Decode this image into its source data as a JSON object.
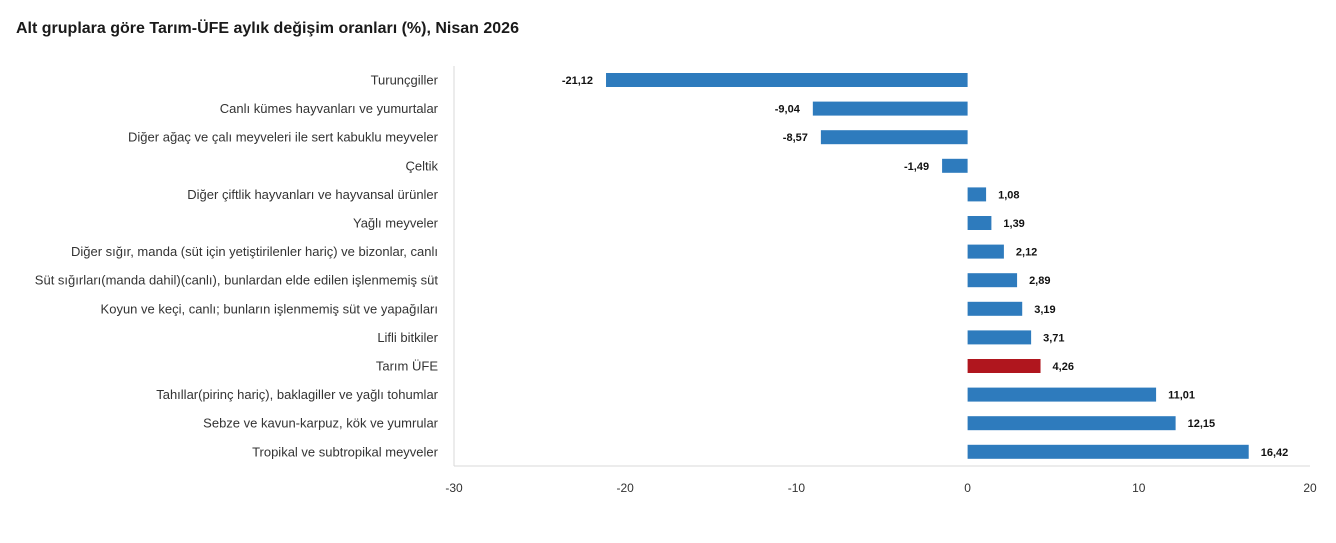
{
  "chart_data": {
    "type": "bar",
    "orientation": "horizontal",
    "title": "Alt gruplara göre Tarım-ÜFE aylık değişim oranları (%), Nisan 2026",
    "xlabel": "",
    "ylabel": "",
    "xlim": [
      -30,
      20
    ],
    "xticks": [
      "-30",
      "-20",
      "-10",
      "0",
      "10",
      "20"
    ],
    "grid": false,
    "legend": "none",
    "colors": {
      "default": "#2e7bbd",
      "highlight": "#b0161e"
    },
    "categories": [
      "Turunçgiller",
      "Canlı kümes hayvanları ve yumurtalar",
      "Diğer ağaç ve çalı meyveleri ile sert kabuklu meyveler",
      "Çeltik",
      "Diğer çiftlik hayvanları ve hayvansal ürünler",
      "Yağlı meyveler",
      "Diğer sığır, manda (süt için yetiştirilenler hariç) ve bizonlar, canlı",
      "Süt sığırları(manda dahil)(canlı), bunlardan elde edilen işlenmemiş süt",
      "Koyun ve keçi, canlı; bunların işlenmemiş süt ve yapağıları",
      "Lifli bitkiler",
      "Tarım ÜFE",
      "Tahıllar(pirinç hariç), baklagiller ve yağlı tohumlar",
      "Sebze ve kavun-karpuz, kök ve yumrular",
      "Tropikal ve subtropikal meyveler"
    ],
    "values": [
      -21.12,
      -9.04,
      -8.57,
      -1.49,
      1.08,
      1.39,
      2.12,
      2.89,
      3.19,
      3.71,
      4.26,
      11.01,
      12.15,
      16.42
    ],
    "value_labels": [
      "-21,12",
      "-9,04",
      "-8,57",
      "-1,49",
      "1,08",
      "1,39",
      "2,12",
      "2,89",
      "3,19",
      "3,71",
      "4,26",
      "11,01",
      "12,15",
      "16,42"
    ],
    "highlight_category": "Tarım ÜFE"
  }
}
